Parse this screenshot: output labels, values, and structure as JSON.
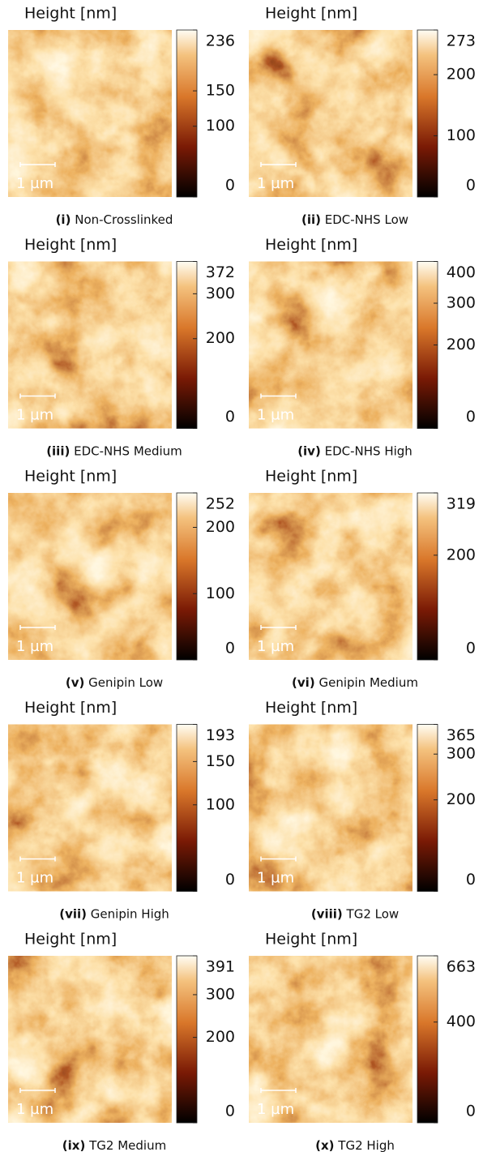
{
  "panels": [
    {
      "title": "Height [nm]",
      "clim": [
        0,
        236
      ],
      "ticks": [
        0,
        100,
        150,
        236
      ],
      "scale_bar": "1 µm",
      "caption": {
        "numeral": "(i)",
        "text": "Non-Crosslinked"
      }
    },
    {
      "title": "Height [nm]",
      "clim": [
        0,
        273
      ],
      "ticks": [
        0,
        100,
        200,
        273
      ],
      "scale_bar": "1 µm",
      "caption": {
        "numeral": "(ii)",
        "text": "EDC-NHS Low"
      }
    },
    {
      "title": "Height [nm]",
      "clim": [
        0,
        372
      ],
      "ticks": [
        0,
        200,
        300,
        372
      ],
      "scale_bar": "1 µm",
      "caption": {
        "numeral": "(iii)",
        "text": "EDC-NHS Medium"
      }
    },
    {
      "title": "Height [nm]",
      "clim": [
        0,
        400
      ],
      "ticks": [
        0,
        200,
        300,
        400
      ],
      "scale_bar": "1 µm",
      "caption": {
        "numeral": "(iv)",
        "text": "EDC-NHS High"
      }
    },
    {
      "title": "Height [nm]",
      "clim": [
        0,
        252
      ],
      "ticks": [
        0,
        100,
        200,
        252
      ],
      "scale_bar": "1 µm",
      "caption": {
        "numeral": "(v)",
        "text": "Genipin Low"
      }
    },
    {
      "title": "Height [nm]",
      "clim": [
        0,
        319
      ],
      "ticks": [
        0,
        200,
        319
      ],
      "scale_bar": "1 µm",
      "caption": {
        "numeral": "(vi)",
        "text": "Genipin Medium"
      }
    },
    {
      "title": "Height [nm]",
      "clim": [
        0,
        193
      ],
      "ticks": [
        0,
        100,
        150,
        193
      ],
      "scale_bar": "1 µm",
      "caption": {
        "numeral": "(vii)",
        "text": "Genipin High"
      }
    },
    {
      "title": "Height [nm]",
      "clim": [
        0,
        365
      ],
      "ticks": [
        0,
        200,
        300,
        365
      ],
      "scale_bar": "1 µm",
      "caption": {
        "numeral": "(viii)",
        "text": "TG2 Low"
      }
    },
    {
      "title": "Height [nm]",
      "clim": [
        0,
        391
      ],
      "ticks": [
        0,
        200,
        300,
        391
      ],
      "scale_bar": "1 µm",
      "caption": {
        "numeral": "(ix)",
        "text": "TG2 Medium"
      }
    },
    {
      "title": "Height [nm]",
      "clim": [
        0,
        663
      ],
      "ticks": [
        0,
        400,
        663
      ],
      "scale_bar": "1 µm",
      "caption": {
        "numeral": "(x)",
        "text": "TG2 High"
      }
    }
  ]
}
